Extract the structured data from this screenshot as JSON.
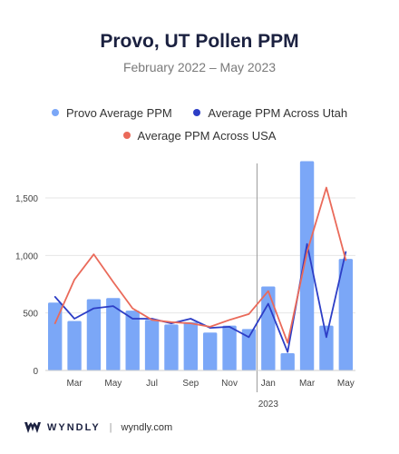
{
  "header": {
    "title": "Provo, UT Pollen PPM",
    "subtitle": "February 2022 – May 2023"
  },
  "footer": {
    "brand": "WYNDLY",
    "separator": "|",
    "url": "wyndly.com"
  },
  "colors": {
    "bar": "#7ba7f7",
    "utah": "#2d3ec6",
    "usa": "#ea6a5a",
    "title": "#1b2140"
  },
  "chart_data": {
    "type": "bar",
    "ylim": [
      0,
      1800
    ],
    "yticks": [
      0,
      500,
      1000,
      1500
    ],
    "ytick_labels": [
      "0",
      "500",
      "1,000",
      "1,500"
    ],
    "grid": true,
    "legend_position": "top",
    "categories": [
      "Feb 2022",
      "Mar 2022",
      "Apr 2022",
      "May 2022",
      "Jun 2022",
      "Jul 2022",
      "Aug 2022",
      "Sep 2022",
      "Oct 2022",
      "Nov 2022",
      "Dec 2022",
      "Jan 2023",
      "Feb 2023",
      "Mar 2023",
      "Apr 2023",
      "May 2023"
    ],
    "x_tick_labels": [
      {
        "index": 1,
        "label": "Mar"
      },
      {
        "index": 3,
        "label": "May"
      },
      {
        "index": 5,
        "label": "Jul"
      },
      {
        "index": 7,
        "label": "Sep"
      },
      {
        "index": 9,
        "label": "Nov"
      },
      {
        "index": 11,
        "label": "Jan"
      },
      {
        "index": 13,
        "label": "Mar"
      },
      {
        "index": 15,
        "label": "May"
      }
    ],
    "year_marker": {
      "index": 11,
      "label": "2023"
    },
    "series": [
      {
        "name": "Provo Average PPM",
        "kind": "bar",
        "color": "#7ba7f7",
        "values": [
          590,
          430,
          620,
          630,
          520,
          440,
          400,
          420,
          330,
          390,
          360,
          730,
          150,
          1820,
          390,
          970
        ]
      },
      {
        "name": "Average PPM Across Utah",
        "kind": "line",
        "color": "#2d3ec6",
        "values": [
          640,
          450,
          540,
          560,
          450,
          450,
          410,
          450,
          370,
          380,
          290,
          580,
          160,
          1100,
          290,
          1030
        ]
      },
      {
        "name": "Average PPM Across USA",
        "kind": "line",
        "color": "#ea6a5a",
        "values": [
          410,
          790,
          1010,
          770,
          540,
          440,
          420,
          410,
          380,
          440,
          490,
          690,
          240,
          1030,
          1590,
          960
        ]
      }
    ]
  }
}
